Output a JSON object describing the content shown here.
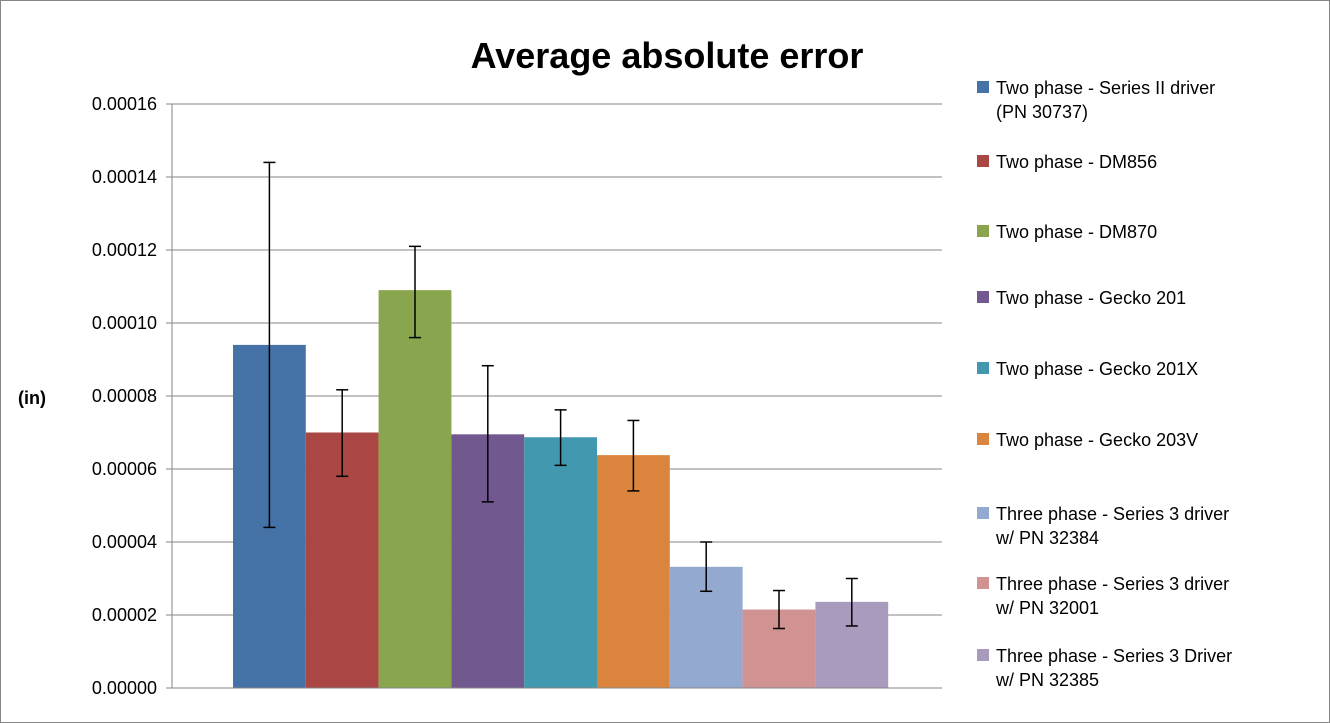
{
  "chart_data": {
    "type": "bar",
    "title": "Average absolute error",
    "ylabel": "(in)",
    "xlabel": "",
    "ylim": [
      0,
      0.00016
    ],
    "yticks": [
      "0.00000",
      "0.00002",
      "0.00004",
      "0.00006",
      "0.00008",
      "0.00010",
      "0.00012",
      "0.00014",
      "0.00016"
    ],
    "grid": true,
    "legend_position": "right",
    "series": [
      {
        "name": "Two phase - Series II driver (PN 30737)",
        "legend_lines": [
          "Two phase - Series II driver",
          "(PN 30737)"
        ],
        "value": 9.4e-05,
        "error_low": 4.4e-05,
        "error_high": 0.000144,
        "color": "#4572A7"
      },
      {
        "name": "Two phase - DM856",
        "legend_lines": [
          "Two phase - DM856"
        ],
        "value": 7e-05,
        "error_low": 5.8e-05,
        "error_high": 8.17e-05,
        "color": "#AA4643"
      },
      {
        "name": "Two phase - DM870",
        "legend_lines": [
          "Two phase - DM870"
        ],
        "value": 0.000109,
        "error_low": 9.6e-05,
        "error_high": 0.000121,
        "color": "#89A54E"
      },
      {
        "name": "Two phase - Gecko 201",
        "legend_lines": [
          "Two phase - Gecko 201"
        ],
        "value": 6.95e-05,
        "error_low": 5.1e-05,
        "error_high": 8.83e-05,
        "color": "#71588F"
      },
      {
        "name": "Two phase - Gecko 201X",
        "legend_lines": [
          "Two phase - Gecko 201X"
        ],
        "value": 6.87e-05,
        "error_low": 6.1e-05,
        "error_high": 7.62e-05,
        "color": "#4198AF"
      },
      {
        "name": "Two phase - Gecko 203V",
        "legend_lines": [
          "Two phase - Gecko 203V"
        ],
        "value": 6.38e-05,
        "error_low": 5.4e-05,
        "error_high": 7.33e-05,
        "color": "#DB843D"
      },
      {
        "name": "Three phase - Series 3 driver w/ PN 32384",
        "legend_lines": [
          "Three phase - Series 3 driver",
          "w/ PN 32384"
        ],
        "value": 3.32e-05,
        "error_low": 2.65e-05,
        "error_high": 4e-05,
        "color": "#93A9CF"
      },
      {
        "name": "Three phase - Series 3 driver w/ PN 32001",
        "legend_lines": [
          "Three phase - Series 3 driver",
          "w/ PN 32001"
        ],
        "value": 2.15e-05,
        "error_low": 1.63e-05,
        "error_high": 2.67e-05,
        "color": "#D19392"
      },
      {
        "name": "Three phase - Series 3 Driver w/ PN 32385",
        "legend_lines": [
          "Three phase - Series 3 Driver",
          "w/ PN 32385"
        ],
        "value": 2.36e-05,
        "error_low": 1.7e-05,
        "error_high": 3e-05,
        "color": "#A99BBD"
      }
    ]
  }
}
